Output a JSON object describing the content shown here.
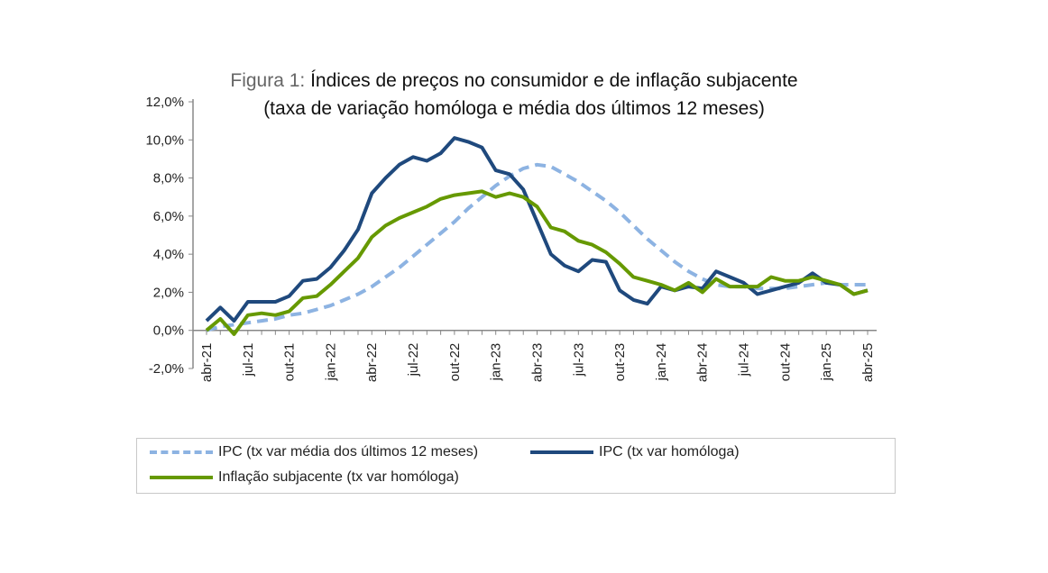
{
  "chart_data": {
    "type": "line",
    "title_prefix": "Figura 1:",
    "title": "Índices de preços no consumidor e de inflação subjacente",
    "subtitle": "(taxa de variação homóloga e média dos últimos 12 meses)",
    "ylim": [
      -2,
      12
    ],
    "yticks": [
      "-2,0%",
      "0,0%",
      "2,0%",
      "4,0%",
      "6,0%",
      "8,0%",
      "10,0%",
      "12,0%"
    ],
    "ytick_values": [
      -2,
      0,
      2,
      4,
      6,
      8,
      10,
      12
    ],
    "xtick_labels": [
      "abr-21",
      "jul-21",
      "out-21",
      "jan-22",
      "abr-22",
      "jul-22",
      "out-22",
      "jan-23",
      "abr-23",
      "jul-23",
      "out-23",
      "jan-24",
      "abr-24",
      "jul-24",
      "out-24",
      "jan-25",
      "abr-25"
    ],
    "x": [
      "abr-21",
      "mai-21",
      "jun-21",
      "jul-21",
      "ago-21",
      "set-21",
      "out-21",
      "nov-21",
      "dez-21",
      "jan-22",
      "fev-22",
      "mar-22",
      "abr-22",
      "mai-22",
      "jun-22",
      "jul-22",
      "ago-22",
      "set-22",
      "out-22",
      "nov-22",
      "dez-22",
      "jan-23",
      "fev-23",
      "mar-23",
      "abr-23",
      "mai-23",
      "jun-23",
      "jul-23",
      "ago-23",
      "set-23",
      "out-23",
      "nov-23",
      "dez-23",
      "jan-24",
      "fev-24",
      "mar-24",
      "abr-24",
      "mai-24",
      "jun-24",
      "jul-24",
      "ago-24",
      "set-24",
      "out-24",
      "nov-24",
      "dez-24",
      "jan-25",
      "fev-25",
      "mar-25",
      "abr-25"
    ],
    "grid": false,
    "legend_position": "bottom",
    "series": [
      {
        "name": "IPC (tx var média dos últimos 12 meses)",
        "color": "#8db3e2",
        "dash": true,
        "values": [
          0.0,
          0.2,
          0.3,
          0.4,
          0.5,
          0.6,
          0.8,
          0.9,
          1.1,
          1.3,
          1.6,
          1.9,
          2.3,
          2.8,
          3.3,
          3.9,
          4.5,
          5.1,
          5.7,
          6.4,
          7.0,
          7.6,
          8.1,
          8.5,
          8.7,
          8.6,
          8.2,
          7.8,
          7.3,
          6.8,
          6.2,
          5.5,
          4.8,
          4.2,
          3.6,
          3.1,
          2.7,
          2.4,
          2.3,
          2.3,
          2.2,
          2.2,
          2.2,
          2.3,
          2.4,
          2.5,
          2.4,
          2.4,
          2.4
        ]
      },
      {
        "name": "IPC (tx var homóloga)",
        "color": "#1f497d",
        "dash": false,
        "values": [
          0.5,
          1.2,
          0.5,
          1.5,
          1.5,
          1.5,
          1.8,
          2.6,
          2.7,
          3.3,
          4.2,
          5.3,
          7.2,
          8.0,
          8.7,
          9.1,
          8.9,
          9.3,
          10.1,
          9.9,
          9.6,
          8.4,
          8.2,
          7.4,
          5.7,
          4.0,
          3.4,
          3.1,
          3.7,
          3.6,
          2.1,
          1.6,
          1.4,
          2.3,
          2.1,
          2.3,
          2.2,
          3.1,
          2.8,
          2.5,
          1.9,
          2.1,
          2.3,
          2.5,
          3.0,
          2.5,
          2.4,
          1.9,
          2.1
        ]
      },
      {
        "name": "Inflação subjacente (tx var homóloga)",
        "color": "#669900",
        "dash": false,
        "values": [
          0.0,
          0.6,
          -0.2,
          0.8,
          0.9,
          0.8,
          1.0,
          1.7,
          1.8,
          2.4,
          3.1,
          3.8,
          4.9,
          5.5,
          5.9,
          6.2,
          6.5,
          6.9,
          7.1,
          7.2,
          7.3,
          7.0,
          7.2,
          7.0,
          6.5,
          5.4,
          5.2,
          4.7,
          4.5,
          4.1,
          3.5,
          2.8,
          2.6,
          2.4,
          2.1,
          2.5,
          2.0,
          2.7,
          2.3,
          2.3,
          2.3,
          2.8,
          2.6,
          2.6,
          2.8,
          2.6,
          2.4,
          1.9,
          2.1
        ]
      }
    ]
  }
}
